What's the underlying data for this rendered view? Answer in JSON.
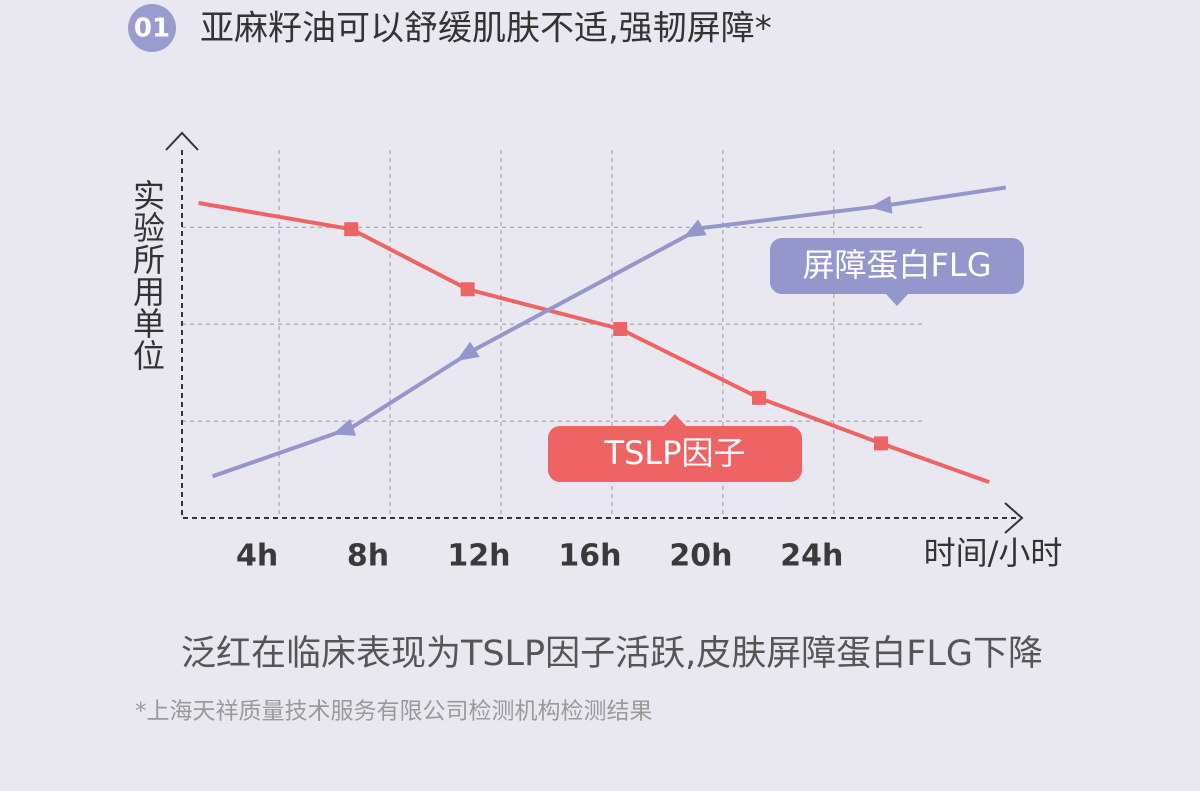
{
  "header": {
    "number": "01",
    "title": "亚麻籽油可以舒缓肌肤不适,强韧屏障*"
  },
  "chart_data": {
    "type": "line",
    "x_label": "时间/小时",
    "y_label": "实验所用单位",
    "xlim": [
      0.5,
      31
    ],
    "ylim": [
      0,
      3.9
    ],
    "xticks": [
      {
        "value": 4,
        "label": "4h"
      },
      {
        "value": 8,
        "label": "8h"
      },
      {
        "value": 12,
        "label": "12h"
      },
      {
        "value": 16,
        "label": "16h"
      },
      {
        "value": 20,
        "label": "20h"
      },
      {
        "value": 24,
        "label": "24h"
      }
    ],
    "ygrid": [
      1,
      2,
      3
    ],
    "grid": true,
    "series": [
      {
        "name": "TSLP因子",
        "color": "#ee6464",
        "marker": "square",
        "x": [
          1.1,
          6.6,
          10.8,
          16.3,
          21.3,
          25.7,
          29.6
        ],
        "values": [
          3.25,
          2.98,
          2.36,
          1.95,
          1.24,
          0.77,
          0.37
        ]
      },
      {
        "name": "屏障蛋白FLG",
        "color": "#9496cc",
        "marker": "triangle",
        "x": [
          1.6,
          6.6,
          11.0,
          19.2,
          26.0,
          30.2
        ],
        "values": [
          0.43,
          0.93,
          1.73,
          2.99,
          3.23,
          3.41
        ]
      }
    ]
  },
  "caption": "泛红在临床表现为TSLP因子活跃,皮肤屏障蛋白FLG下降",
  "footnote": "*上海天祥质量技术服务有限公司检测机构检测结果"
}
